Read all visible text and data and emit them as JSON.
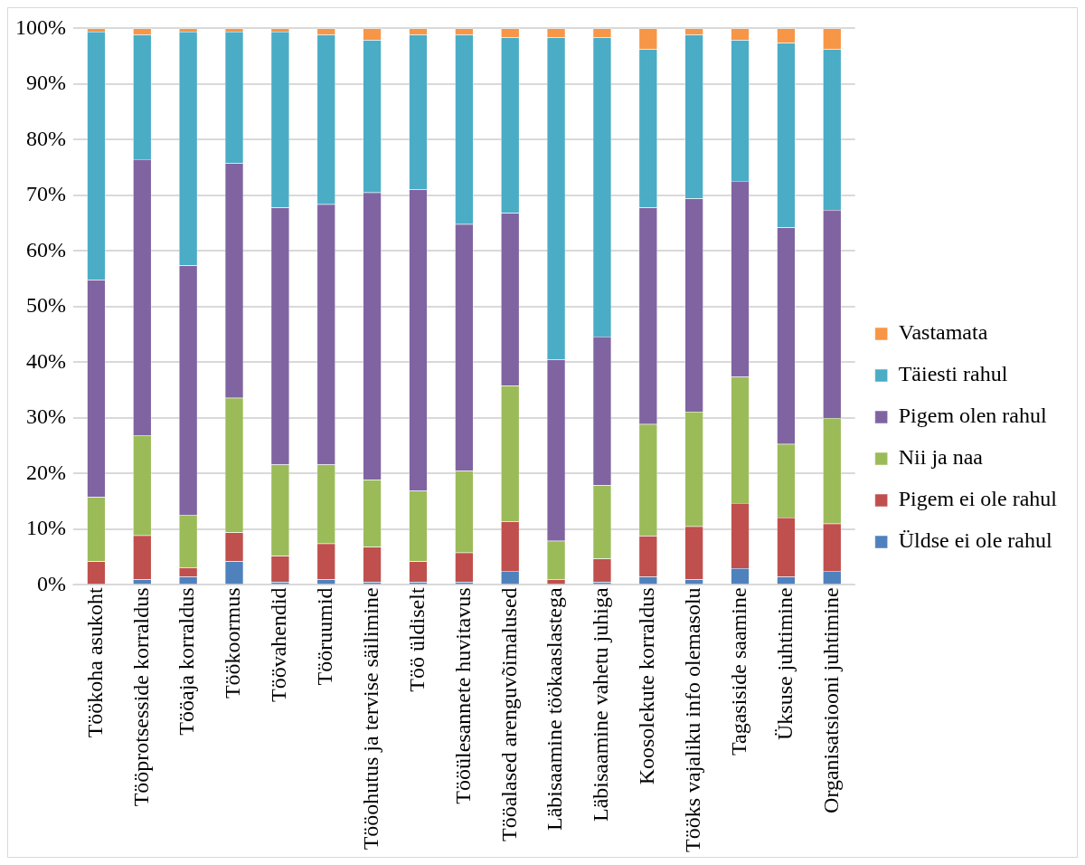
{
  "chart_data": {
    "type": "bar",
    "stacked": true,
    "categories": [
      "Töökoha asukoht",
      "Tööprotsesside korraldus",
      "Tööaja korraldus",
      "Töökoormus",
      "Töövahendid",
      "Tööruumid",
      "Tööohutus ja tervise säilimine",
      "Töö üldiselt",
      "Tööülesannete huvitavus",
      "Tööalased arenguvõimalused",
      "Läbisaamine töökaaslastega",
      "Läbisaamine vahetu juhiga",
      "Koosolekute korraldus",
      "Tööks vajaliku info olemasolu",
      "Tagasiside saamine",
      "Üksuse juhtimine",
      "Organisatsiooni juhtimine"
    ],
    "series": [
      {
        "name": "Üldse ei ole rahul",
        "color": "#4f81bd",
        "values": [
          0,
          1,
          1.5,
          4.2,
          0.5,
          1,
          0.5,
          0.5,
          0.5,
          2.5,
          0,
          0.5,
          1.5,
          1,
          3,
          1.5,
          2.5
        ]
      },
      {
        "name": "Pigem ei ole rahul",
        "color": "#c0504d",
        "values": [
          4.2,
          7.9,
          1.6,
          5.2,
          4.7,
          6.4,
          6.3,
          3.7,
          5.3,
          8.9,
          1,
          4.2,
          7.3,
          9.5,
          11.7,
          10.6,
          8.5
        ]
      },
      {
        "name": "Nii ja naa",
        "color": "#9bbb59",
        "values": [
          11.6,
          18,
          9.5,
          24.2,
          16.4,
          14.2,
          12.1,
          12.7,
          14.7,
          24.4,
          6.9,
          13.2,
          20.1,
          20.6,
          22.7,
          13.2,
          19
        ]
      },
      {
        "name": "Pigem olen rahul",
        "color": "#8064a2",
        "values": [
          39,
          49.6,
          44.8,
          42.2,
          46.2,
          46.8,
          51.6,
          54.2,
          44.3,
          31,
          32.6,
          26.7,
          38.9,
          38.3,
          35.2,
          38.9,
          37.4
        ]
      },
      {
        "name": "Täiesti rahul",
        "color": "#4bacc6",
        "values": [
          44.6,
          22.4,
          42,
          23.6,
          31.6,
          30.5,
          27.4,
          27.8,
          34.1,
          31.6,
          57.9,
          53.8,
          28.5,
          29.5,
          25.3,
          33.2,
          28.9
        ]
      },
      {
        "name": "Vastamata",
        "color": "#f79646",
        "values": [
          0.6,
          1.1,
          0.6,
          0.6,
          0.6,
          1.1,
          2.1,
          1.1,
          1.1,
          1.6,
          1.6,
          1.6,
          3.7,
          1.1,
          2.1,
          2.6,
          3.7
        ]
      }
    ],
    "ylim": [
      0,
      100
    ],
    "yticks": [
      {
        "value": 0,
        "label": "0%"
      },
      {
        "value": 10,
        "label": "10%"
      },
      {
        "value": 20,
        "label": "20%"
      },
      {
        "value": 30,
        "label": "30%"
      },
      {
        "value": 40,
        "label": "40%"
      },
      {
        "value": 50,
        "label": "50%"
      },
      {
        "value": 60,
        "label": "60%"
      },
      {
        "value": 70,
        "label": "70%"
      },
      {
        "value": 80,
        "label": "80%"
      },
      {
        "value": 90,
        "label": "90%"
      },
      {
        "value": 100,
        "label": "100%"
      }
    ],
    "grid": "y",
    "legend": "right"
  }
}
